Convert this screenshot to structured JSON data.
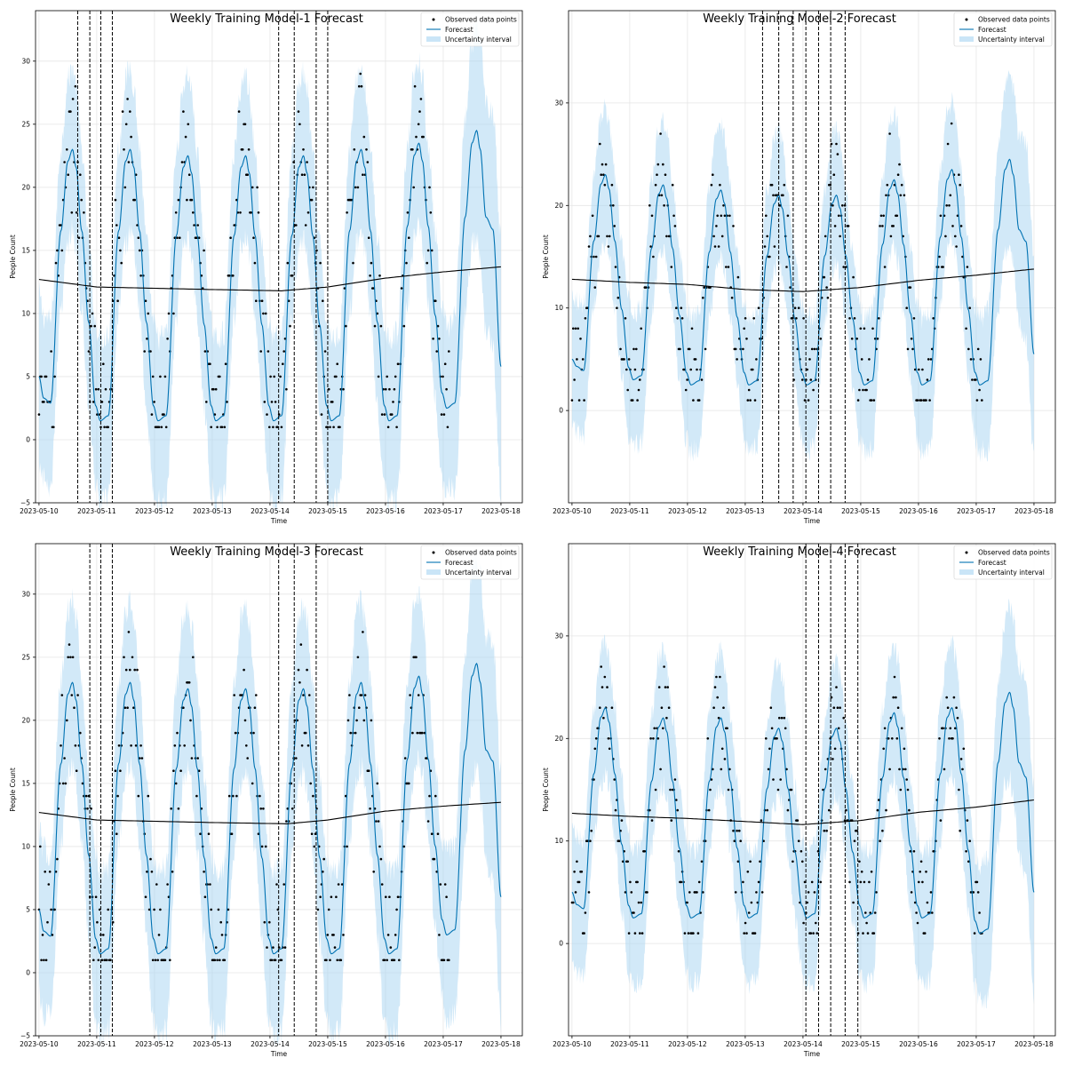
{
  "chart_data": [
    {
      "type": "line",
      "title": "Weekly Training Model-1 Forecast",
      "xlabel": "Time",
      "ylabel": "People Count",
      "x_ticks": [
        "2023-05-10",
        "2023-05-11",
        "2023-05-12",
        "2023-05-13",
        "2023-05-14",
        "2023-05-15",
        "2023-05-16",
        "2023-05-17",
        "2023-05-18"
      ],
      "y_ticks": [
        -5,
        0,
        5,
        10,
        15,
        20,
        25,
        30
      ],
      "xlim": [
        -0.06,
        8.37
      ],
      "ylim": [
        -5,
        34
      ],
      "grid": true,
      "legend_position": "top-right",
      "legend": [
        "Observed data points",
        "Forecast",
        "Uncertainty interval"
      ],
      "trend": [
        [
          0,
          12.7
        ],
        [
          1,
          12.1
        ],
        [
          2,
          12.0
        ],
        [
          3,
          11.9
        ],
        [
          4.2,
          11.8
        ],
        [
          5,
          12.1
        ],
        [
          6,
          12.8
        ],
        [
          7,
          13.3
        ],
        [
          8,
          13.7
        ]
      ],
      "changepoints": [
        0.67,
        0.88,
        1.07,
        1.27,
        4.15,
        4.42,
        4.8,
        5.0
      ],
      "peak_heights": [
        23,
        23,
        22.5,
        22.5,
        22.5,
        23,
        23.5,
        24.5
      ],
      "trough_heights": [
        2.5,
        1.5,
        1.5,
        1.5,
        1.5,
        1.5,
        1.5,
        2.5,
        5.8
      ],
      "series": [
        {
          "name": "Observed data points",
          "role": "observed",
          "range_x": [
            0,
            7.1
          ]
        },
        {
          "name": "Forecast",
          "role": "forecast",
          "range_x": [
            0,
            8
          ]
        },
        {
          "name": "Uncertainty interval",
          "role": "interval",
          "range_x": [
            0,
            8
          ]
        }
      ]
    },
    {
      "type": "line",
      "title": "Weekly Training Model-2 Forecast",
      "xlabel": "Time",
      "ylabel": "People Count",
      "x_ticks": [
        "2023-05-10",
        "2023-05-11",
        "2023-05-12",
        "2023-05-13",
        "2023-05-14",
        "2023-05-15",
        "2023-05-16",
        "2023-05-17",
        "2023-05-18"
      ],
      "y_ticks": [
        0,
        10,
        20,
        30
      ],
      "xlim": [
        -0.06,
        8.37
      ],
      "ylim": [
        -9,
        39
      ],
      "grid": true,
      "legend_position": "top-right",
      "legend": [
        "Observed data points",
        "Forecast",
        "Uncertainty interval"
      ],
      "trend": [
        [
          0,
          12.8
        ],
        [
          1,
          12.5
        ],
        [
          2,
          12.3
        ],
        [
          3,
          11.8
        ],
        [
          4,
          11.6
        ],
        [
          5,
          12.0
        ],
        [
          6,
          12.7
        ],
        [
          7,
          13.2
        ],
        [
          8,
          13.8
        ]
      ],
      "changepoints": [
        3.3,
        3.58,
        3.83,
        4.05,
        4.27,
        4.48,
        4.73
      ],
      "peak_heights": [
        23,
        22,
        21.5,
        21,
        21,
        22.5,
        23.5,
        24.5
      ],
      "trough_heights": [
        3.5,
        3,
        2.5,
        2.5,
        2.5,
        2.5,
        2.5,
        2.5,
        5.5
      ],
      "series": [
        {
          "name": "Observed data points",
          "role": "observed",
          "range_x": [
            0,
            7.1
          ]
        },
        {
          "name": "Forecast",
          "role": "forecast",
          "range_x": [
            0,
            8
          ]
        },
        {
          "name": "Uncertainty interval",
          "role": "interval",
          "range_x": [
            0,
            8
          ]
        }
      ]
    },
    {
      "type": "line",
      "title": "Weekly Training Model-3 Forecast",
      "xlabel": "Time",
      "ylabel": "People Count",
      "x_ticks": [
        "2023-05-10",
        "2023-05-11",
        "2023-05-12",
        "2023-05-13",
        "2023-05-14",
        "2023-05-15",
        "2023-05-16",
        "2023-05-17",
        "2023-05-18"
      ],
      "y_ticks": [
        -5,
        0,
        5,
        10,
        15,
        20,
        25,
        30
      ],
      "xlim": [
        -0.06,
        8.37
      ],
      "ylim": [
        -5,
        34
      ],
      "grid": true,
      "legend_position": "top-right",
      "legend": [
        "Observed data points",
        "Forecast",
        "Uncertainty interval"
      ],
      "trend": [
        [
          0,
          12.7
        ],
        [
          1,
          12.1
        ],
        [
          2,
          12.0
        ],
        [
          3,
          11.9
        ],
        [
          4.3,
          11.8
        ],
        [
          5,
          12.1
        ],
        [
          6,
          12.8
        ],
        [
          7,
          13.2
        ],
        [
          8,
          13.5
        ]
      ],
      "changepoints": [
        0.88,
        1.07,
        1.27,
        4.15,
        4.42,
        4.8
      ],
      "peak_heights": [
        23,
        23,
        22.5,
        22.5,
        22.5,
        23,
        23.5,
        24.5
      ],
      "trough_heights": [
        2.5,
        1.5,
        1.5,
        1.5,
        1.5,
        1.5,
        1.5,
        3,
        6
      ],
      "series": [
        {
          "name": "Observed data points",
          "role": "observed",
          "range_x": [
            0,
            7.1
          ]
        },
        {
          "name": "Forecast",
          "role": "forecast",
          "range_x": [
            0,
            8
          ]
        },
        {
          "name": "Uncertainty interval",
          "role": "interval",
          "range_x": [
            0,
            8
          ]
        }
      ]
    },
    {
      "type": "line",
      "title": "Weekly Training Model-4 Forecast",
      "xlabel": "Time",
      "ylabel": "People Count",
      "x_ticks": [
        "2023-05-10",
        "2023-05-11",
        "2023-05-12",
        "2023-05-13",
        "2023-05-14",
        "2023-05-15",
        "2023-05-16",
        "2023-05-17",
        "2023-05-18"
      ],
      "y_ticks": [
        0,
        10,
        20,
        30
      ],
      "xlim": [
        -0.06,
        8.37
      ],
      "ylim": [
        -9,
        39
      ],
      "grid": true,
      "legend_position": "top-right",
      "legend": [
        "Observed data points",
        "Forecast",
        "Uncertainty interval"
      ],
      "trend": [
        [
          0,
          12.7
        ],
        [
          1,
          12.4
        ],
        [
          2,
          12.2
        ],
        [
          3,
          11.9
        ],
        [
          4,
          11.6
        ],
        [
          5,
          12.0
        ],
        [
          6,
          12.8
        ],
        [
          7,
          13.3
        ],
        [
          8,
          14.0
        ]
      ],
      "changepoints": [
        4.05,
        4.27,
        4.48,
        4.73,
        4.95
      ],
      "peak_heights": [
        23,
        22,
        22,
        21,
        21,
        22.5,
        23,
        24.5
      ],
      "trough_heights": [
        3,
        2.5,
        2.5,
        2.5,
        2.5,
        2.5,
        2.5,
        1,
        5
      ],
      "series": [
        {
          "name": "Observed data points",
          "role": "observed",
          "range_x": [
            0,
            7.1
          ]
        },
        {
          "name": "Forecast",
          "role": "forecast",
          "range_x": [
            0,
            8
          ]
        },
        {
          "name": "Uncertainty interval",
          "role": "interval",
          "range_x": [
            0,
            8
          ]
        }
      ]
    }
  ],
  "colors": {
    "forecast": "#0072b2",
    "interval": "#a6d4f2",
    "observed": "#000000",
    "trend": "#000000",
    "changepoint": "#000000",
    "grid": "#e6e6e6"
  }
}
